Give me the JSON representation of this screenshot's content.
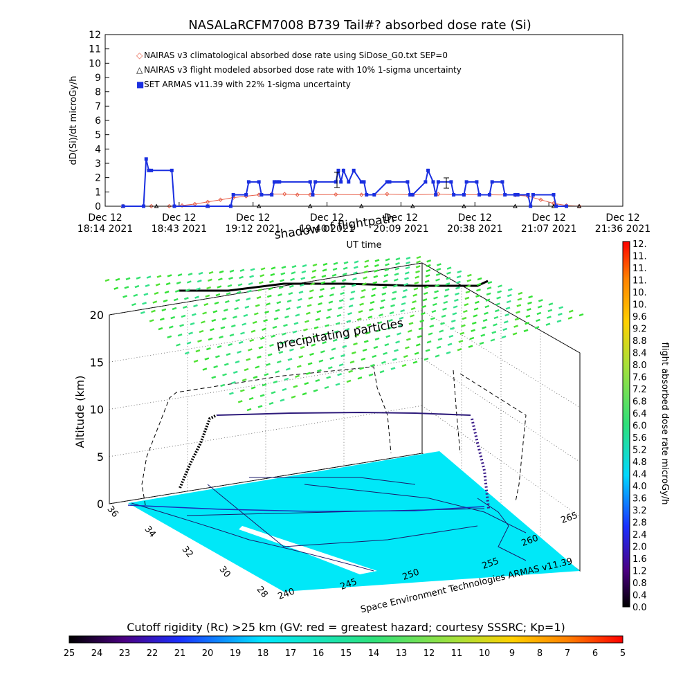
{
  "title": "NASALaRCFM7008  B739 Tail#? absorbed dose rate (Si)",
  "colors": {
    "climatological": "#e8604a",
    "flight_modeled": "#000000",
    "armas": "#1a2fe0",
    "particles": "#38e06a",
    "ground": "#00e8f8"
  },
  "chart_data": [
    {
      "type": "line",
      "ylabel": "dD(Si)/dt microGy/h",
      "xlabel": "UT time",
      "ylim": [
        0,
        12
      ],
      "y_ticks": [
        "0",
        "1",
        "2",
        "3",
        "4",
        "5",
        "6",
        "7",
        "8",
        "9",
        "10",
        "11",
        "12"
      ],
      "x_ticks": [
        {
          "line1": "Dec 12",
          "line2": "18:14 2021"
        },
        {
          "line1": "Dec 12",
          "line2": "18:43 2021"
        },
        {
          "line1": "Dec 12",
          "line2": "19:12 2021"
        },
        {
          "line1": "Dec 12",
          "line2": "19:40 2021"
        },
        {
          "line1": "Dec 12",
          "line2": "20:09 2021"
        },
        {
          "line1": "Dec 12",
          "line2": "20:38 2021"
        },
        {
          "line1": "Dec 12",
          "line2": "21:07 2021"
        },
        {
          "line1": "Dec 12",
          "line2": "21:36 2021"
        }
      ],
      "x_range_minutes": [
        0,
        202
      ],
      "legend": [
        {
          "marker": "◇",
          "label": "NAIRAS v3 climatological absorbed dose rate using SiDose_G0.txt SEP=0"
        },
        {
          "marker": "△",
          "label": "NAIRAS v3 flight modeled absorbed dose rate with 10% 1-sigma uncertainty"
        },
        {
          "marker": "■",
          "label": "SET ARMAS v11.39 with 22% 1-sigma uncertainty"
        }
      ],
      "series": [
        {
          "name": "NAIRAS v3 climatological absorbed dose rate using SiDose_G0.txt SEP=0",
          "x": [
            7,
            18,
            25,
            30,
            35,
            40,
            45,
            50,
            55,
            60,
            65,
            70,
            75,
            80,
            90,
            100,
            110,
            120,
            130,
            140,
            150,
            160,
            165,
            170,
            175,
            180,
            185
          ],
          "y": [
            0,
            0,
            0,
            0.05,
            0.15,
            0.3,
            0.45,
            0.6,
            0.7,
            0.8,
            0.85,
            0.85,
            0.8,
            0.8,
            0.82,
            0.8,
            0.85,
            0.8,
            0.85,
            0.8,
            0.8,
            0.78,
            0.7,
            0.45,
            0.2,
            0.05,
            0
          ]
        },
        {
          "name": "NAIRAS v3 flight modeled absorbed dose rate with 10% 1-sigma uncertainty",
          "x": [
            7,
            20,
            40,
            60,
            80,
            100,
            120,
            140,
            160,
            175,
            185
          ],
          "y": [
            0,
            0,
            0,
            0,
            0,
            0,
            0,
            0,
            0,
            0,
            0
          ]
        },
        {
          "name": "SET ARMAS v11.39 with 22% 1-sigma uncertainty",
          "x": [
            7,
            15,
            16,
            17,
            18,
            26,
            27,
            40,
            49,
            50,
            55,
            56,
            60,
            61,
            65,
            66,
            67,
            68,
            80,
            81,
            82,
            90,
            91,
            92,
            93,
            95,
            97,
            100,
            101,
            102,
            105,
            110,
            111,
            118,
            119,
            120,
            125,
            126,
            128,
            129,
            130,
            135,
            136,
            140,
            141,
            145,
            146,
            150,
            151,
            155,
            156,
            160,
            161,
            165,
            166,
            167,
            175,
            176,
            180
          ],
          "y": [
            0,
            0,
            3.3,
            2.5,
            2.5,
            2.5,
            0,
            0,
            0,
            0.8,
            0.8,
            1.7,
            1.7,
            0.8,
            0.8,
            1.7,
            1.7,
            1.7,
            1.7,
            0.8,
            1.7,
            1.7,
            2.5,
            1.7,
            2.5,
            1.7,
            2.5,
            1.7,
            1.7,
            0.8,
            0.8,
            1.7,
            1.7,
            1.7,
            0.8,
            0.8,
            1.7,
            2.5,
            1.7,
            0.8,
            1.7,
            1.7,
            0.8,
            0.8,
            1.7,
            1.7,
            0.8,
            0.8,
            1.7,
            1.7,
            0.8,
            0.8,
            0.8,
            0.8,
            0,
            0.8,
            0.8,
            0,
            0
          ]
        }
      ]
    },
    {
      "type": "scatter",
      "ylabel": "Altitude (km)",
      "z_ticks": [
        "0",
        "5",
        "10",
        "15",
        "20"
      ],
      "lat_ticks": [
        "36",
        "34",
        "32",
        "30",
        "28"
      ],
      "lon_ticks_front": [
        "240",
        "245",
        "250"
      ],
      "lon_ticks_right": [
        "255",
        "260",
        "265"
      ],
      "annotations": [
        {
          "text": "shadow of flightpath"
        },
        {
          "text": "precipitating particles"
        }
      ],
      "credit": "Space Environment Technologies ARMAS v11.39"
    }
  ],
  "colorbar_right": {
    "label": "flight absorbed dose rate microGy/h",
    "ticks": [
      "0.0",
      "0.4",
      "0.8",
      "1.2",
      "1.6",
      "2.0",
      "2.4",
      "2.8",
      "3.2",
      "3.6",
      "4.0",
      "4.4",
      "4.8",
      "5.2",
      "5.6",
      "6.0",
      "6.4",
      "6.8",
      "7.2",
      "7.6",
      "8.0",
      "8.4",
      "8.8",
      "9.2",
      "9.6",
      "10.",
      "10.",
      "11.",
      "11.",
      "11.",
      "12."
    ]
  },
  "colorbar_bottom": {
    "label": "Cutoff rigidity (Rc) >25 km (GV: red = greatest hazard; courtesy SSSRC; Kp=1)",
    "ticks": [
      "25",
      "24",
      "23",
      "22",
      "21",
      "20",
      "19",
      "18",
      "17",
      "16",
      "15",
      "14",
      "13",
      "12",
      "11",
      "10",
      "9",
      "8",
      "7",
      "6",
      "5"
    ]
  }
}
